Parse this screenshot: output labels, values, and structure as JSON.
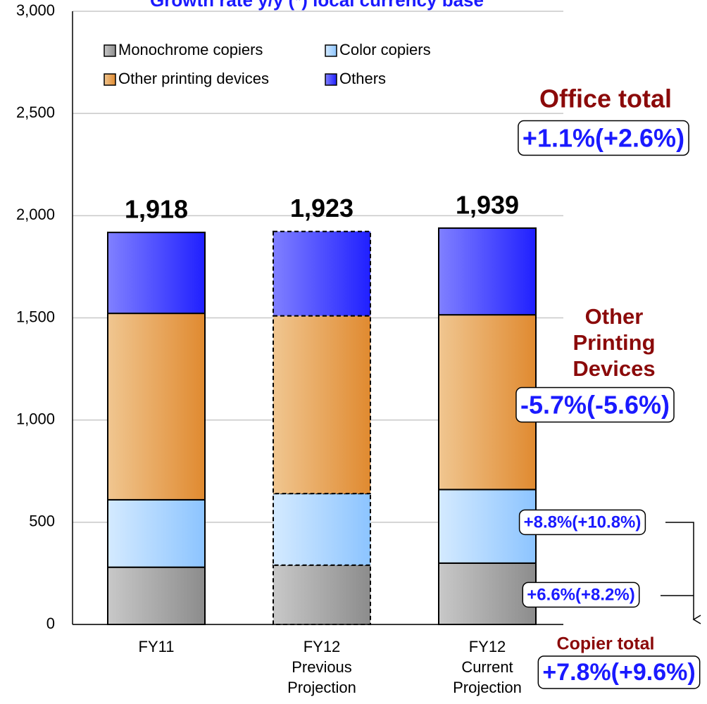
{
  "chart_data": {
    "type": "stacked_bar",
    "title": "Growth rate y/y (*) local currency base",
    "categories": [
      "FY11",
      "FY12 Previous Projection",
      "FY12 Current Projection"
    ],
    "series": [
      {
        "name": "Monochrome copiers",
        "color": "#a0a0a0",
        "values": [
          280,
          290,
          300
        ]
      },
      {
        "name": "Color copiers",
        "color": "#a8d4ff",
        "values": [
          330,
          350,
          360
        ]
      },
      {
        "name": "Other printing devices",
        "color": "#e8a860",
        "values": [
          912,
          870,
          855
        ]
      },
      {
        "name": "Others",
        "color": "#4040ff",
        "values": [
          396,
          413,
          424
        ]
      }
    ],
    "totals": [
      1918,
      1923,
      1939
    ],
    "total_labels": [
      "1,918",
      "1,923",
      "1,939"
    ],
    "dashed_category": 1,
    "ylim": [
      0,
      3000
    ],
    "yticks": [
      0,
      500,
      {
        "value": 1000,
        "label": "1,000"
      },
      {
        "value": 1500,
        "label": "1,500"
      },
      {
        "value": 2000,
        "label": "2,000"
      },
      {
        "value": 2500,
        "label": "2,500"
      },
      {
        "value": 3000,
        "label": "3,000"
      }
    ],
    "grid": true,
    "legend": "upper left",
    "annotations": [
      {
        "text": "Office total",
        "kind": "heading"
      },
      {
        "text": "+1.1%(+2.6%)",
        "kind": "box"
      },
      {
        "text": "Other Printing Devices",
        "kind": "heading"
      },
      {
        "text": "-5.7%(-5.6%)",
        "kind": "box"
      },
      {
        "text": "+8.8%(+10.8%)",
        "kind": "box"
      },
      {
        "text": "+6.6%(+8.2%)",
        "kind": "box"
      },
      {
        "text": "Copier total",
        "kind": "heading"
      },
      {
        "text": "+7.8%(+9.6%)",
        "kind": "box"
      }
    ]
  }
}
